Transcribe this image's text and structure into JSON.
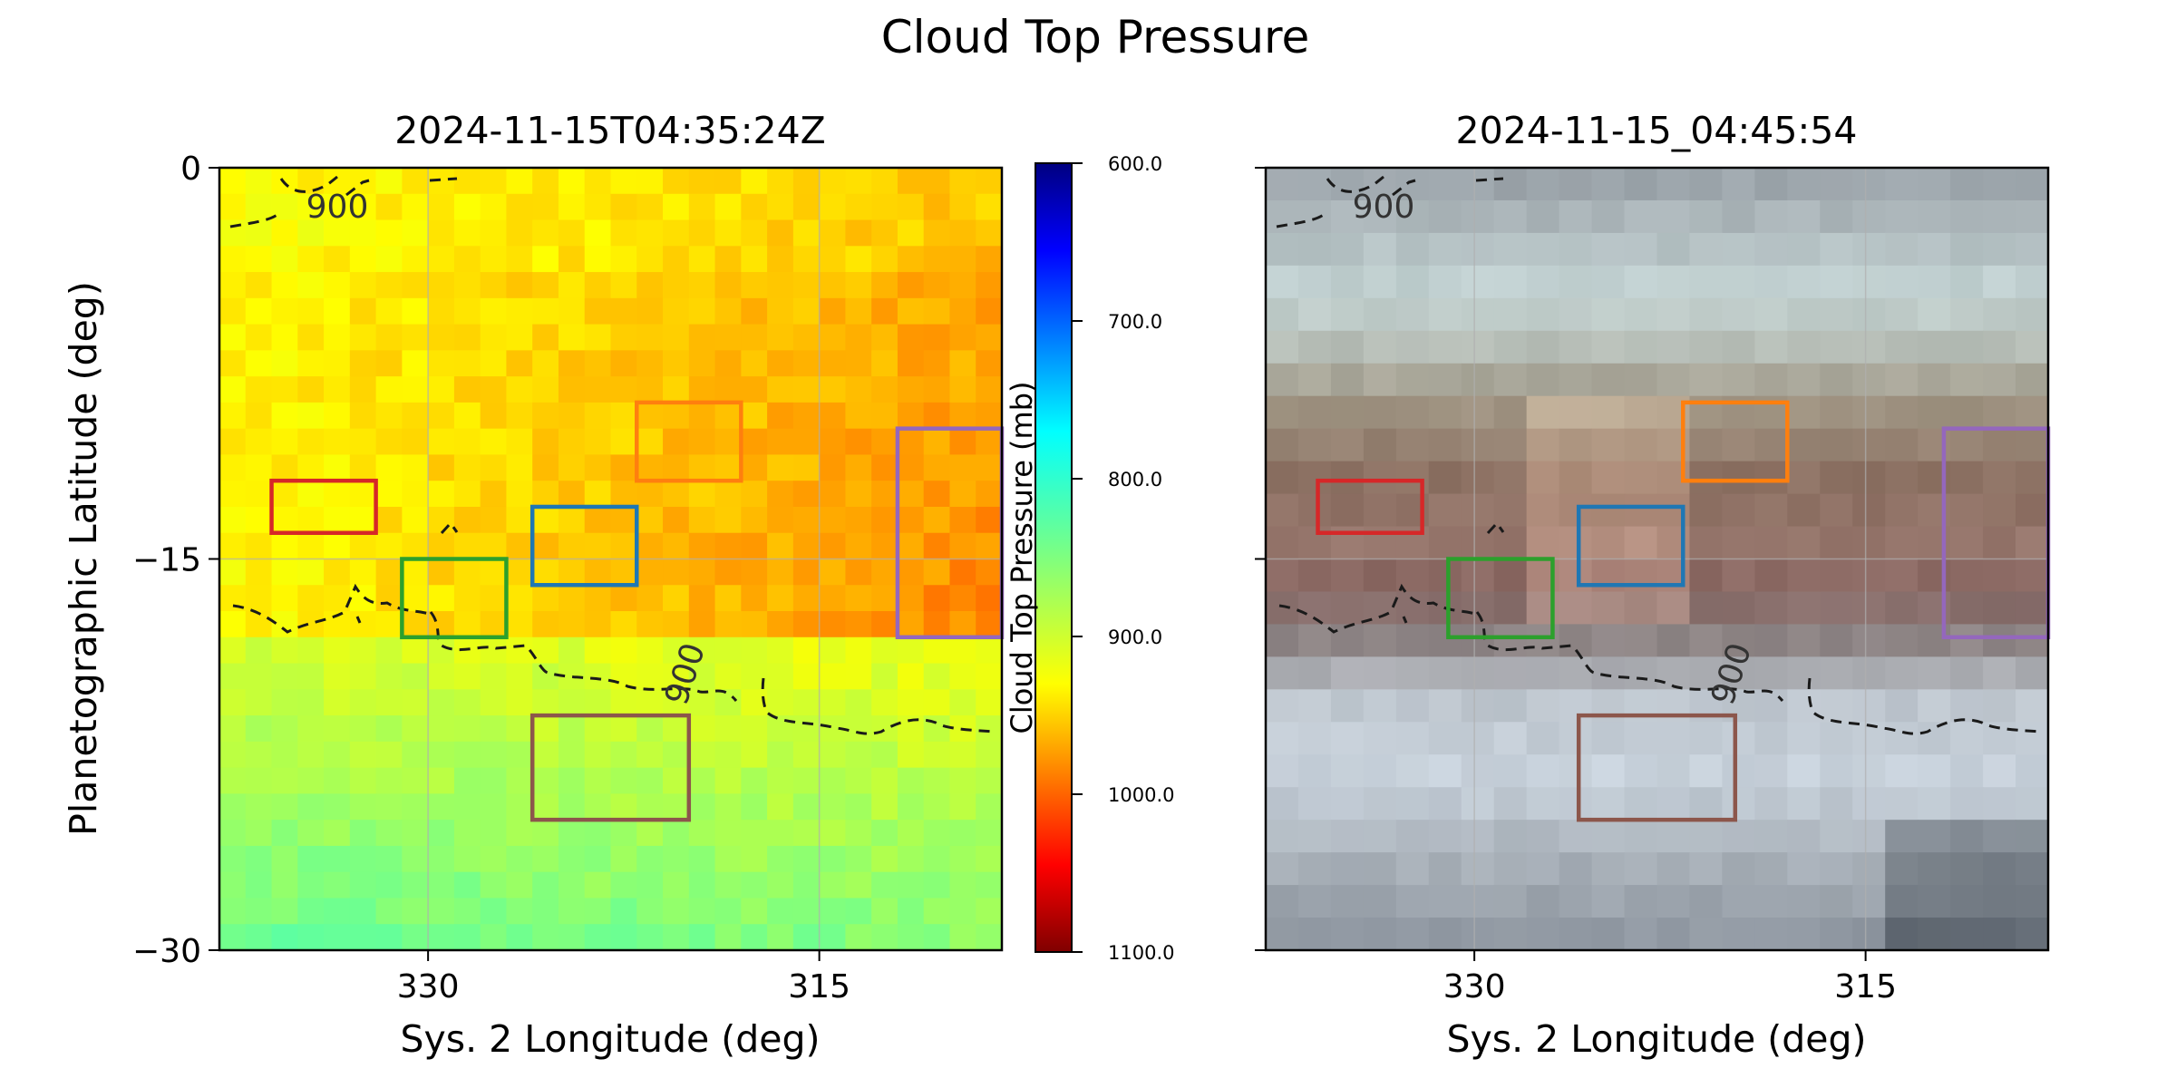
{
  "figure": {
    "title": "Cloud Top Pressure"
  },
  "chart_data": [
    {
      "type": "heatmap",
      "title": "2024-11-15T04:35:24Z",
      "xlabel": "Sys. 2 Longitude (deg)",
      "ylabel": "Planetographic Latitude (deg)",
      "xlim": [
        338,
        308
      ],
      "ylim": [
        -30,
        0
      ],
      "xticks": [
        330,
        315
      ],
      "yticks": [
        0,
        -15,
        -30
      ],
      "ytick_labels": [
        "0",
        "−15",
        "−30"
      ],
      "grid": true,
      "colormap": "jet_r",
      "colorbar": {
        "label": "Cloud Top Pressure (mb)",
        "range": [
          600,
          1100
        ],
        "ticks": [
          600,
          700,
          800,
          900,
          1000,
          1100
        ],
        "tick_labels": [
          "600.0",
          "700.0",
          "800.0",
          "900.0",
          "1000.0",
          "1100.0"
        ]
      },
      "contour": {
        "level": 900,
        "label": "900",
        "style": "dashed"
      },
      "regions": [
        {
          "color": "#d62728",
          "lon": [
            336,
            332
          ],
          "lat": [
            -12,
            -14
          ]
        },
        {
          "color": "#2ca02c",
          "lon": [
            331,
            327
          ],
          "lat": [
            -15,
            -18
          ]
        },
        {
          "color": "#1f77b4",
          "lon": [
            326,
            322
          ],
          "lat": [
            -13,
            -16
          ]
        },
        {
          "color": "#ff7f0e",
          "lon": [
            322,
            318
          ],
          "lat": [
            -9,
            -12
          ]
        },
        {
          "color": "#9467bd",
          "lon": [
            312,
            308
          ],
          "lat": [
            -10,
            -18
          ]
        },
        {
          "color": "#8c564b",
          "lon": [
            326,
            320
          ],
          "lat": [
            -21,
            -25
          ]
        }
      ]
    },
    {
      "type": "image",
      "title": "2024-11-15_04:45:54",
      "xlabel": "Sys. 2 Longitude (deg)",
      "xlim": [
        338,
        308
      ],
      "ylim": [
        -30,
        0
      ],
      "xticks": [
        330,
        315
      ],
      "grid": true,
      "contour": {
        "level": 900,
        "label": "900",
        "style": "dashed"
      },
      "regions": "same as left panel"
    }
  ]
}
